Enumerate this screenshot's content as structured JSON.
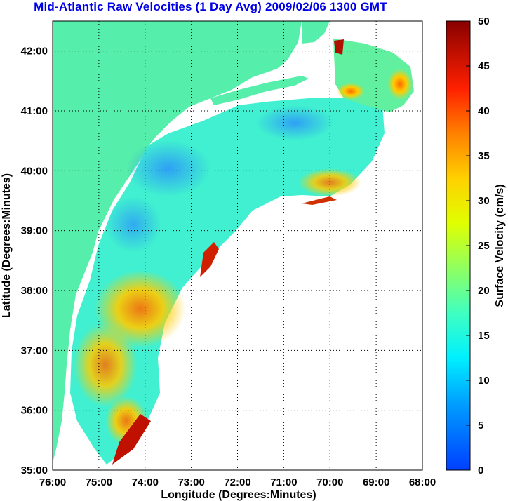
{
  "title": "Mid-Atlantic Raw Velocities (1 Day Avg) 2009/02/06 1300 GMT",
  "x_axis": {
    "label": "Longitude (Degrees:Minutes)",
    "ticks": [
      "76:00",
      "75:00",
      "74:00",
      "73:00",
      "72:00",
      "71:00",
      "70:00",
      "69:00",
      "68:00"
    ]
  },
  "y_axis": {
    "label": "Latitude (Degrees:Minutes)",
    "ticks": [
      "35:00",
      "36:00",
      "37:00",
      "38:00",
      "39:00",
      "40:00",
      "41:00",
      "42:00"
    ]
  },
  "colorbar": {
    "label": "Surface Velocity (cm/s)",
    "ticks": [
      "0",
      "5",
      "10",
      "15",
      "20",
      "25",
      "30",
      "35",
      "40",
      "45",
      "50"
    ],
    "min": 0,
    "max": 50
  },
  "colors": {
    "land": "#55eeaa",
    "title": "#0000e6",
    "grid": "#000000"
  },
  "map_extent": {
    "lon": [
      -76,
      -68
    ],
    "lat": [
      35,
      42.5
    ]
  }
}
